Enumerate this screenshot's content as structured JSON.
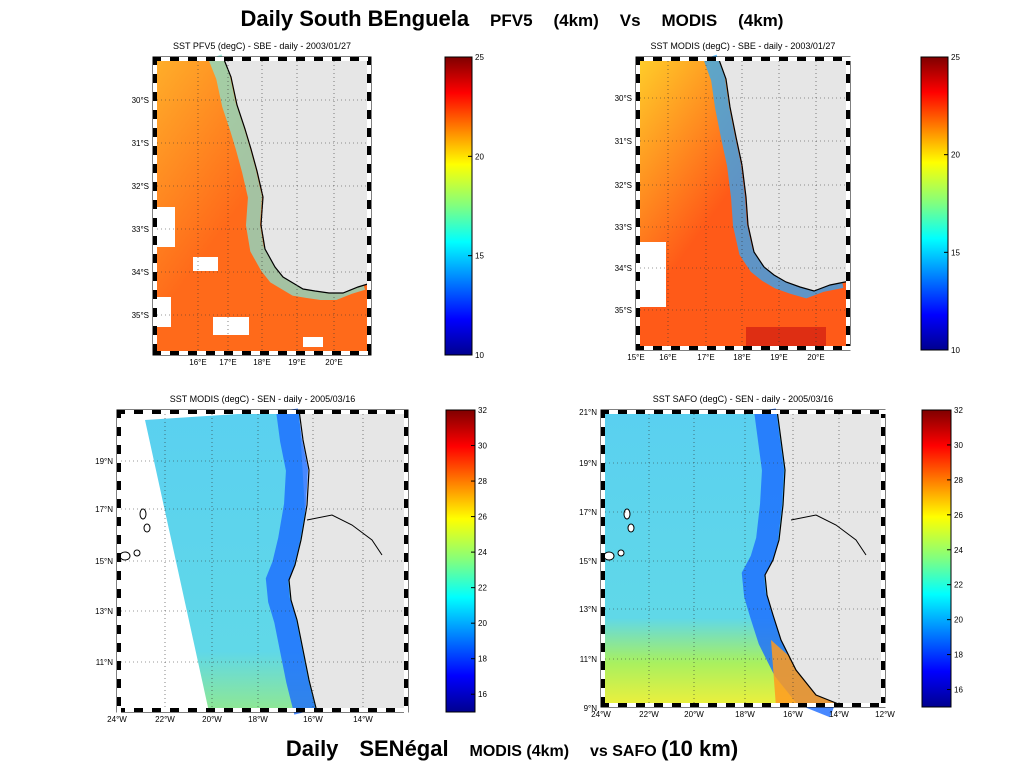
{
  "titles": {
    "top": {
      "main": "Daily South BEnguela",
      "p1": "PFV5",
      "p2": "(4km)",
      "p3": "Vs",
      "p4": "MODIS",
      "p5": "(4km)"
    },
    "bottom": {
      "main": "Daily",
      "sen": "SENégal",
      "p1": "MODIS (4km)",
      "p2": "vs SAFO",
      "p3": "(10 km)"
    }
  },
  "panels": [
    {
      "id": "tl",
      "title": "SST PFV5  (degC) - SBE - daily - 2003/01/27",
      "lat_labels": [
        "30°S",
        "31°S",
        "32°S",
        "33°S",
        "34°S",
        "35°S"
      ],
      "lon_labels": [
        "16°E",
        "17°E",
        "18°E",
        "19°E",
        "20°E"
      ],
      "colorbar": {
        "min": 10,
        "max": 25,
        "ticks": [
          "25",
          "20",
          "15",
          "10"
        ]
      },
      "colors": {
        "land": "#e6e6e6",
        "ocean_warm": "#ff6a1a",
        "ocean_mid": "#ffb02a",
        "coastal": "#86e0d0"
      }
    },
    {
      "id": "tr",
      "title": "SST MODIS  (degC) - SBE - daily - 2003/01/27",
      "lat_labels": [
        "30°S",
        "31°S",
        "32°S",
        "33°S",
        "34°S",
        "35°S"
      ],
      "lon_labels": [
        "15°E",
        "16°E",
        "17°E",
        "18°E",
        "19°E",
        "20°E"
      ],
      "colorbar": {
        "min": 10,
        "max": 25,
        "ticks": [
          "25",
          "20",
          "15",
          "10"
        ]
      },
      "colors": {
        "land": "#e6e6e6",
        "ocean_warm": "#ff5a18",
        "ocean_mid": "#ffd02a",
        "coastal": "#2aa8ff"
      }
    },
    {
      "id": "bl",
      "title": "SST MODIS  (degC) - SEN - daily - 2005/03/16",
      "lat_labels": [
        "19°N",
        "17°N",
        "15°N",
        "13°N",
        "11°N"
      ],
      "lon_labels": [
        "24°W",
        "22°W",
        "20°W",
        "18°W",
        "16°W",
        "14°W"
      ],
      "colorbar": {
        "min": 15,
        "max": 32,
        "ticks": [
          "32",
          "30",
          "28",
          "26",
          "24",
          "22",
          "20",
          "18",
          "16"
        ]
      },
      "colors": {
        "land": "#e6e6e6",
        "ocean": "#5ad0f0",
        "coastal": "#1a6aff"
      }
    },
    {
      "id": "br",
      "title": "SST SAFO  (degC) - SEN - daily - 2005/03/16",
      "lat_labels": [
        "21°N",
        "19°N",
        "17°N",
        "15°N",
        "13°N",
        "11°N",
        "9°N"
      ],
      "lon_labels": [
        "24°W",
        "22°W",
        "20°W",
        "18°W",
        "16°W",
        "14°W",
        "12°W"
      ],
      "colorbar": {
        "min": 15,
        "max": 32,
        "ticks": [
          "32",
          "30",
          "28",
          "26",
          "24",
          "22",
          "20",
          "18",
          "16"
        ]
      },
      "colors": {
        "land": "#e6e6e6",
        "ocean": "#5ad0f0",
        "coastal": "#1a6aff",
        "south": "#f0f03a"
      }
    }
  ]
}
